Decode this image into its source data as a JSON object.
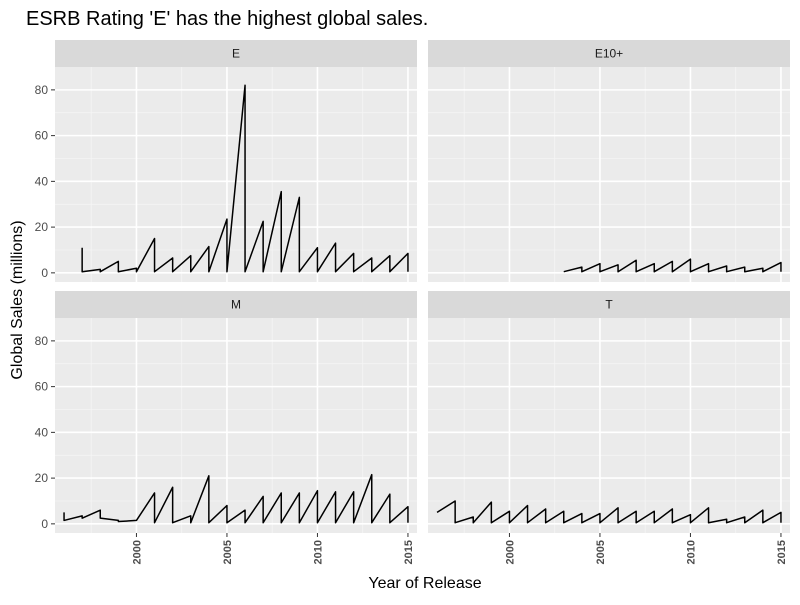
{
  "chart_data": {
    "type": "line",
    "title": "ESRB Rating 'E' has the highest global sales.",
    "xlabel": "Year of Release",
    "ylabel": "Global Sales (millions)",
    "xlim": [
      1995.5,
      2015.5
    ],
    "ylim": [
      -4,
      90
    ],
    "x_ticks": [
      2000,
      2005,
      2010,
      2015
    ],
    "y_ticks": [
      0,
      20,
      40,
      60,
      80
    ],
    "grid": true,
    "facet_order": [
      "E",
      "E10+",
      "M",
      "T"
    ],
    "facets": [
      {
        "label": "E",
        "points": [
          [
            1997,
            11
          ],
          [
            1997,
            0.5
          ],
          [
            1998,
            1.5
          ],
          [
            1998,
            0.5
          ],
          [
            1999,
            5
          ],
          [
            1999,
            0.5
          ],
          [
            2000,
            2
          ],
          [
            2000,
            0.5
          ],
          [
            2001,
            15
          ],
          [
            2001,
            0.5
          ],
          [
            2002,
            6.5
          ],
          [
            2002,
            0.5
          ],
          [
            2003,
            7.5
          ],
          [
            2003,
            0.5
          ],
          [
            2004,
            11.5
          ],
          [
            2004,
            0.5
          ],
          [
            2005,
            23.5
          ],
          [
            2005,
            0.5
          ],
          [
            2006,
            82
          ],
          [
            2006,
            0.5
          ],
          [
            2007,
            22.5
          ],
          [
            2007,
            0.5
          ],
          [
            2008,
            35.5
          ],
          [
            2008,
            0.5
          ],
          [
            2009,
            33
          ],
          [
            2009,
            0.5
          ],
          [
            2010,
            11
          ],
          [
            2010,
            0.5
          ],
          [
            2011,
            13
          ],
          [
            2011,
            0.5
          ],
          [
            2012,
            8.5
          ],
          [
            2012,
            0.5
          ],
          [
            2013,
            6.5
          ],
          [
            2013,
            0.5
          ],
          [
            2014,
            7.5
          ],
          [
            2014,
            0.5
          ],
          [
            2015,
            8.5
          ],
          [
            2015,
            0.5
          ]
        ]
      },
      {
        "label": "E10+",
        "points": [
          [
            2003,
            0.5
          ],
          [
            2004,
            2.5
          ],
          [
            2004,
            0.5
          ],
          [
            2005,
            4
          ],
          [
            2005,
            0.5
          ],
          [
            2006,
            3.5
          ],
          [
            2006,
            0.5
          ],
          [
            2007,
            5.5
          ],
          [
            2007,
            0.5
          ],
          [
            2008,
            4
          ],
          [
            2008,
            0.5
          ],
          [
            2009,
            5
          ],
          [
            2009,
            0.5
          ],
          [
            2010,
            6
          ],
          [
            2010,
            0.5
          ],
          [
            2011,
            4
          ],
          [
            2011,
            0.5
          ],
          [
            2012,
            3
          ],
          [
            2012,
            0.5
          ],
          [
            2013,
            2.5
          ],
          [
            2013,
            0.5
          ],
          [
            2014,
            2
          ],
          [
            2014,
            0.5
          ],
          [
            2015,
            4.5
          ],
          [
            2015,
            0.5
          ]
        ]
      },
      {
        "label": "M",
        "points": [
          [
            1996,
            5
          ],
          [
            1996,
            1.5
          ],
          [
            1997,
            3.5
          ],
          [
            1997,
            2.5
          ],
          [
            1998,
            6
          ],
          [
            1998,
            2.5
          ],
          [
            1999,
            1.5
          ],
          [
            1999,
            1
          ],
          [
            2000,
            1.5
          ],
          [
            2001,
            13.5
          ],
          [
            2001,
            0.5
          ],
          [
            2002,
            16
          ],
          [
            2002,
            0.5
          ],
          [
            2003,
            3.5
          ],
          [
            2003,
            0.5
          ],
          [
            2004,
            21
          ],
          [
            2004,
            0.5
          ],
          [
            2005,
            8
          ],
          [
            2005,
            0.5
          ],
          [
            2006,
            6
          ],
          [
            2006,
            0.5
          ],
          [
            2007,
            12
          ],
          [
            2007,
            0.5
          ],
          [
            2008,
            13.5
          ],
          [
            2008,
            0.5
          ],
          [
            2009,
            13.5
          ],
          [
            2009,
            0.5
          ],
          [
            2010,
            14.5
          ],
          [
            2010,
            0.5
          ],
          [
            2011,
            14
          ],
          [
            2011,
            0.5
          ],
          [
            2012,
            14
          ],
          [
            2012,
            0.5
          ],
          [
            2013,
            21.5
          ],
          [
            2013,
            0.5
          ],
          [
            2014,
            13
          ],
          [
            2014,
            0.5
          ],
          [
            2015,
            7.5
          ],
          [
            2015,
            0.5
          ]
        ]
      },
      {
        "label": "T",
        "points": [
          [
            1996,
            5
          ],
          [
            1997,
            10
          ],
          [
            1997,
            0.5
          ],
          [
            1998,
            3
          ],
          [
            1998,
            0.5
          ],
          [
            1999,
            9.5
          ],
          [
            1999,
            0.5
          ],
          [
            2000,
            5.5
          ],
          [
            2000,
            0.5
          ],
          [
            2001,
            8
          ],
          [
            2001,
            0.5
          ],
          [
            2002,
            6.5
          ],
          [
            2002,
            0.5
          ],
          [
            2003,
            5.5
          ],
          [
            2003,
            0.5
          ],
          [
            2004,
            4.5
          ],
          [
            2004,
            0.5
          ],
          [
            2005,
            4.5
          ],
          [
            2005,
            0.5
          ],
          [
            2006,
            7
          ],
          [
            2006,
            0.5
          ],
          [
            2007,
            5.5
          ],
          [
            2007,
            0.5
          ],
          [
            2008,
            5.5
          ],
          [
            2008,
            0.5
          ],
          [
            2009,
            6.5
          ],
          [
            2009,
            0.5
          ],
          [
            2010,
            4
          ],
          [
            2010,
            0.5
          ],
          [
            2011,
            7
          ],
          [
            2011,
            0.5
          ],
          [
            2012,
            2
          ],
          [
            2012,
            0.5
          ],
          [
            2013,
            3
          ],
          [
            2013,
            0.5
          ],
          [
            2014,
            6
          ],
          [
            2014,
            0.5
          ],
          [
            2015,
            5
          ],
          [
            2015,
            0.5
          ]
        ]
      }
    ]
  }
}
